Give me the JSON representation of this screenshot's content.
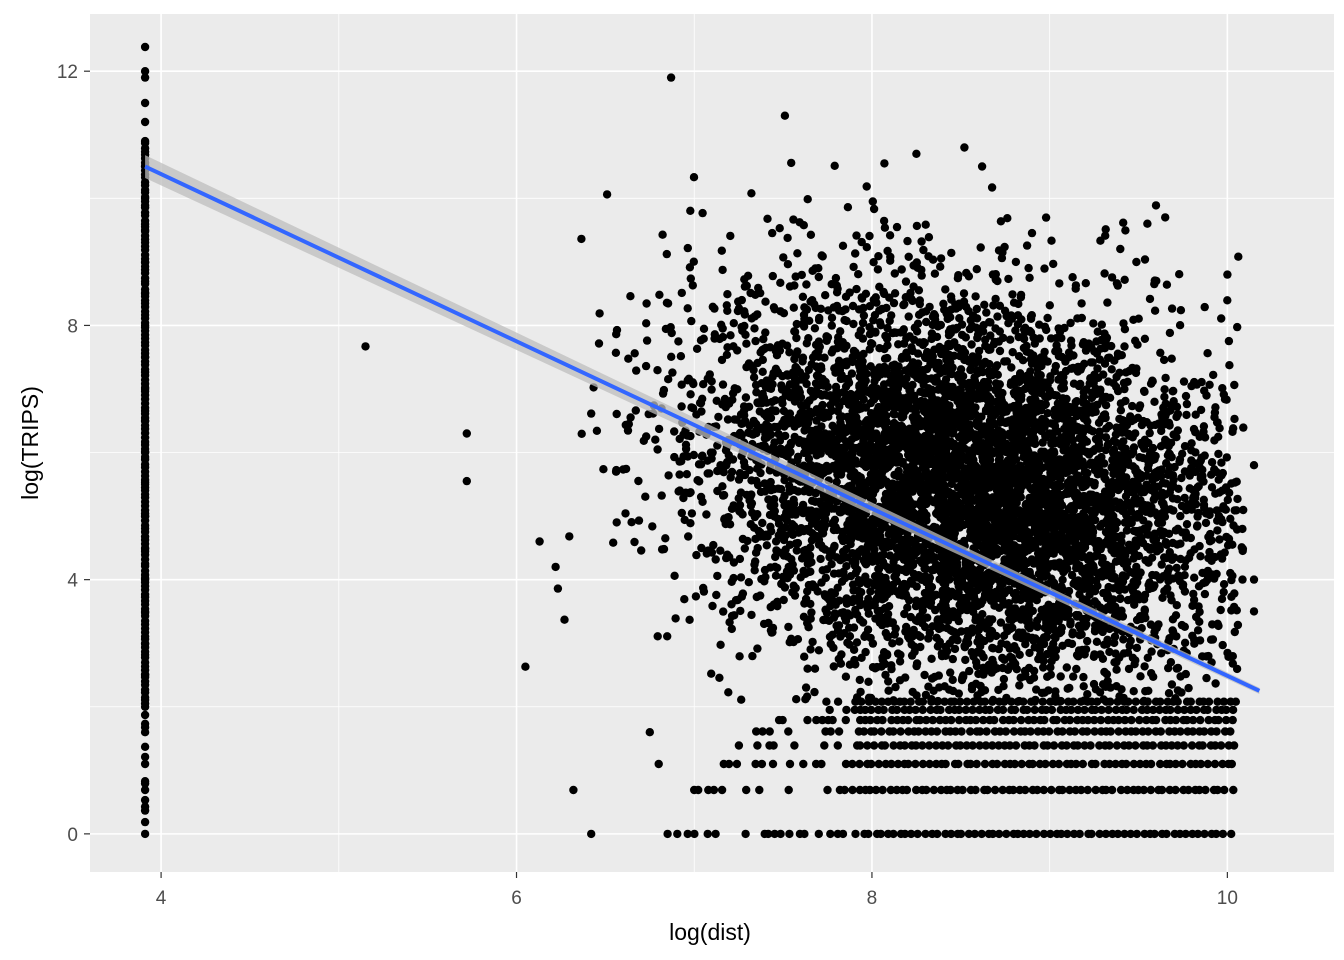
{
  "chart_data": {
    "type": "scatter",
    "title": "",
    "xlabel": "log(dist)",
    "ylabel": "log(TRIPS)",
    "xlim": [
      3.6,
      10.6
    ],
    "ylim": [
      -0.6,
      12.9
    ],
    "x_ticks": [
      4,
      6,
      8,
      10
    ],
    "y_ticks": [
      0,
      4,
      8,
      12
    ],
    "x_tick_labels": [
      "4",
      "6",
      "8",
      "10"
    ],
    "y_tick_labels": [
      "0",
      "4",
      "8",
      "12"
    ],
    "grid": true,
    "legend": "none",
    "colors": {
      "panel_bg": "#ebebeb",
      "grid_major": "#ffffff",
      "points": "#000000",
      "fit_line": "#3366ff",
      "fit_ribbon": "#bdbdbd"
    },
    "series": [
      {
        "kind": "points",
        "points": [
          [
            3.91,
            12.38
          ],
          [
            3.91,
            12.0
          ],
          [
            3.91,
            11.9
          ],
          [
            3.91,
            11.5
          ],
          [
            3.91,
            11.2
          ],
          [
            3.91,
            10.9
          ],
          [
            3.91,
            10.5
          ],
          [
            3.91,
            10.0
          ],
          [
            3.91,
            9.5
          ],
          [
            3.91,
            9.0
          ],
          [
            3.91,
            8.5
          ],
          [
            3.91,
            8.0
          ],
          [
            3.91,
            7.5
          ],
          [
            3.91,
            7.0
          ],
          [
            3.91,
            6.5
          ],
          [
            3.91,
            6.0
          ],
          [
            3.91,
            5.5
          ],
          [
            3.91,
            5.0
          ],
          [
            3.91,
            4.5
          ],
          [
            3.91,
            4.0
          ],
          [
            3.91,
            3.5
          ],
          [
            3.91,
            3.0
          ],
          [
            3.91,
            2.5
          ],
          [
            3.91,
            2.0
          ],
          [
            3.91,
            1.6
          ],
          [
            3.91,
            1.1
          ],
          [
            3.91,
            0.69
          ],
          [
            3.91,
            0.0
          ],
          [
            5.15,
            7.67
          ],
          [
            5.72,
            6.3
          ],
          [
            5.72,
            5.55
          ],
          [
            6.05,
            2.63
          ],
          [
            6.42,
            0.0
          ],
          [
            6.32,
            0.69
          ],
          [
            6.27,
            3.37
          ],
          [
            6.22,
            4.2
          ],
          [
            6.13,
            4.6
          ],
          [
            6.87,
            11.9
          ],
          [
            7.51,
            11.3
          ],
          [
            8.07,
            10.55
          ],
          [
            8.25,
            10.7
          ],
          [
            8.52,
            10.8
          ],
          [
            8.62,
            10.5
          ],
          [
            9.55,
            9.6
          ],
          [
            9.65,
            9.7
          ],
          [
            10.15,
            5.8
          ],
          [
            10.15,
            4.0
          ],
          [
            10.15,
            3.5
          ],
          [
            9.6,
            8.7
          ],
          [
            10.0,
            8.8
          ],
          [
            7.62,
            0.0
          ],
          [
            7.0,
            0.69
          ],
          [
            7.12,
            0.0
          ],
          [
            6.85,
            0.0
          ],
          [
            6.75,
            1.6
          ],
          [
            6.8,
            1.1
          ]
        ]
      },
      {
        "kind": "point_cloud",
        "x_range": [
          6.2,
          10.1
        ],
        "center": [
          8.55,
          5.4
        ],
        "spread": [
          0.75,
          1.5
        ],
        "tilt": -0.45,
        "approx_count": 6500
      },
      {
        "kind": "horizontal_bands",
        "x_range_low": [
          6.9,
          10.05
        ],
        "x_range_high": [
          7.7,
          10.05
        ],
        "y_levels": [
          0.0,
          0.69,
          1.1,
          1.39,
          1.61,
          1.79,
          1.95,
          2.08
        ]
      },
      {
        "kind": "fit_line",
        "x": [
          3.91,
          10.18
        ],
        "y": [
          10.5,
          2.25
        ],
        "ribbon_halfwidth": [
          0.18,
          0.05
        ]
      }
    ]
  }
}
